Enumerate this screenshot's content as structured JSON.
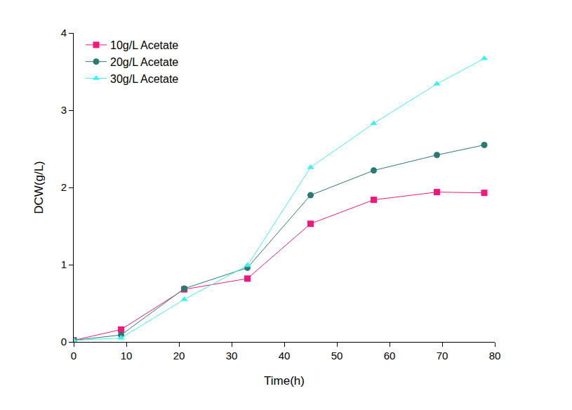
{
  "chart_data": {
    "type": "line",
    "x_label": "Time(h)",
    "y_label": "DCW(g/L)",
    "x": [
      0,
      9,
      21,
      33,
      45,
      57,
      69,
      78
    ],
    "series": [
      {
        "name": "10g/L Acetate",
        "color": "#f0187c",
        "marker": "square",
        "line_style": "solid",
        "values": [
          0.02,
          0.16,
          0.68,
          0.82,
          1.53,
          1.84,
          1.94,
          1.93
        ]
      },
      {
        "name": "20g/L Acetate",
        "color": "#2a7a72",
        "marker": "circle",
        "line_style": "solid",
        "values": [
          0.02,
          0.09,
          0.69,
          0.96,
          1.9,
          2.22,
          2.42,
          2.55
        ]
      },
      {
        "name": "30g/L Acetate",
        "color": "#3ff0f0",
        "marker": "triangle-up",
        "line_style": "solid",
        "values": [
          0.02,
          0.05,
          0.55,
          0.99,
          2.26,
          2.83,
          3.34,
          3.67
        ]
      }
    ],
    "xlim": [
      0,
      80
    ],
    "xticks": [
      0,
      10,
      20,
      30,
      40,
      50,
      60,
      70,
      80
    ],
    "ylim": [
      0,
      4
    ],
    "yticks": [
      0,
      1,
      2,
      3,
      4
    ],
    "grid": false,
    "legend": "upper left"
  }
}
